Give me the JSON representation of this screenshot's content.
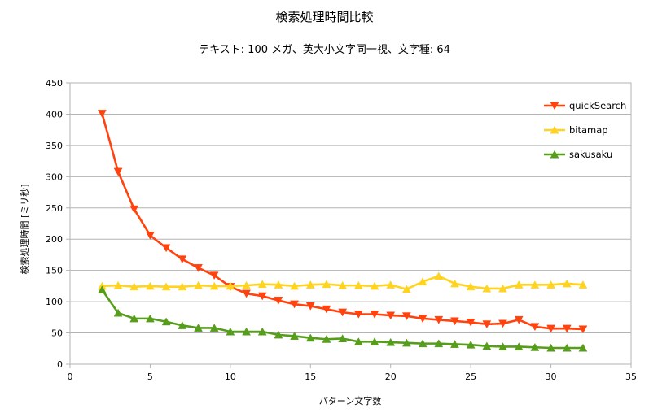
{
  "chart_data": {
    "type": "line",
    "title": "検索処理時間比較",
    "subtitle": "テキスト: 100 メガ、英大小文字同一視、文字種: 64",
    "xlabel": "パターン文字数",
    "ylabel": "検索処理時間 [ミリ秒]",
    "xlim": [
      0,
      35
    ],
    "ylim": [
      0,
      450
    ],
    "xticks": [
      0,
      5,
      10,
      15,
      20,
      25,
      30,
      35
    ],
    "yticks": [
      0,
      50,
      100,
      150,
      200,
      250,
      300,
      350,
      400,
      450
    ],
    "grid": "horizontal",
    "legend_position": "right",
    "x": [
      2,
      3,
      4,
      5,
      6,
      7,
      8,
      9,
      10,
      11,
      12,
      13,
      14,
      15,
      16,
      17,
      18,
      19,
      20,
      21,
      22,
      23,
      24,
      25,
      26,
      27,
      28,
      29,
      30,
      31,
      32
    ],
    "series": [
      {
        "name": "quickSearch",
        "color": "#ff420e",
        "marker": "triangle-down",
        "values": [
          401,
          308,
          248,
          206,
          186,
          168,
          154,
          142,
          124,
          113,
          109,
          102,
          96,
          93,
          88,
          83,
          80,
          80,
          78,
          77,
          73,
          71,
          69,
          67,
          64,
          65,
          71,
          60,
          57,
          57,
          56
        ]
      },
      {
        "name": "bitamap",
        "color": "#ffd320",
        "marker": "triangle-up",
        "values": [
          125,
          126,
          124,
          125,
          124,
          124,
          126,
          125,
          125,
          126,
          128,
          127,
          125,
          127,
          128,
          126,
          126,
          125,
          127,
          120,
          132,
          141,
          129,
          124,
          121,
          121,
          127,
          127,
          127,
          129,
          127
        ]
      },
      {
        "name": "sakusaku",
        "color": "#579d1c",
        "marker": "triangle-up",
        "values": [
          119,
          82,
          73,
          73,
          68,
          62,
          58,
          58,
          52,
          52,
          52,
          47,
          45,
          42,
          40,
          41,
          36,
          36,
          35,
          34,
          33,
          33,
          32,
          31,
          29,
          28,
          28,
          27,
          26,
          26,
          26
        ]
      }
    ]
  }
}
